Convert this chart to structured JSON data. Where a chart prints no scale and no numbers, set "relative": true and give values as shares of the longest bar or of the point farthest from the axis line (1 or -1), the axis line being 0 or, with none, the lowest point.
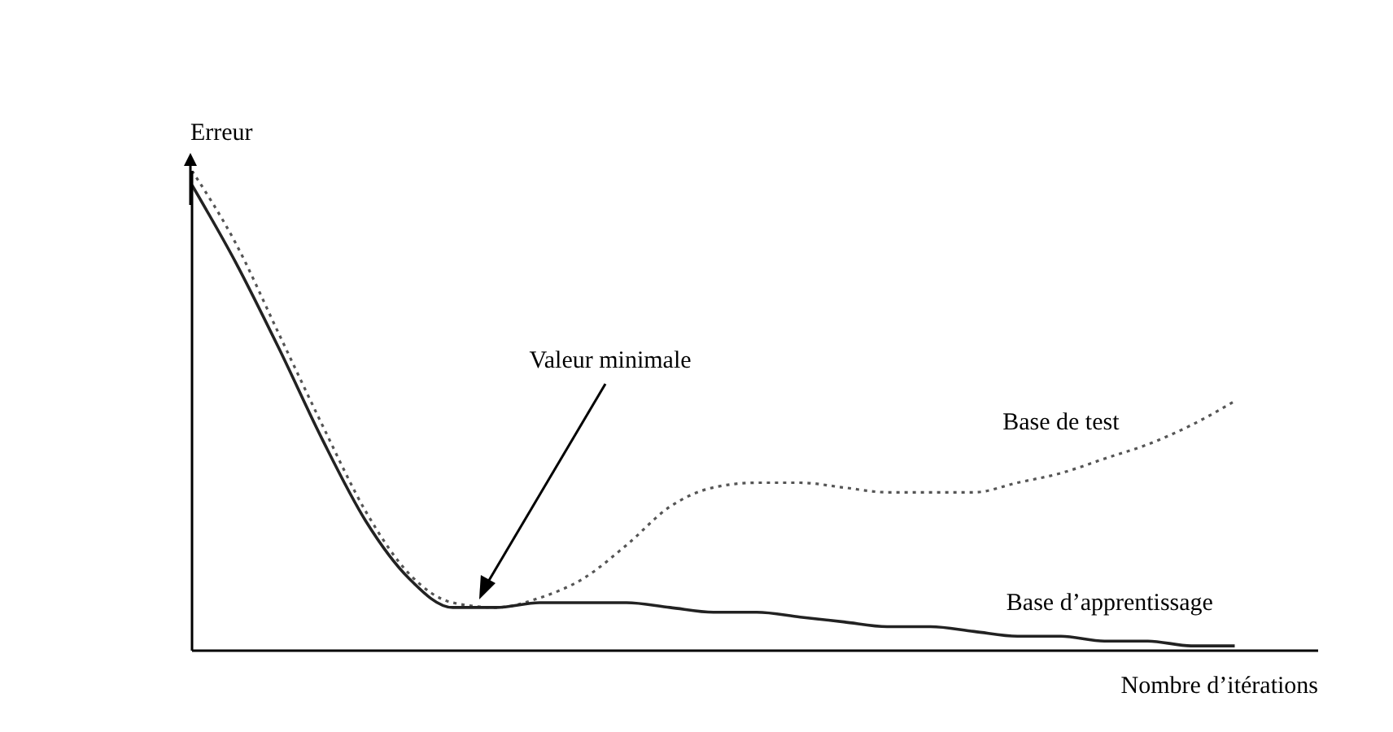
{
  "chart_data": {
    "type": "line",
    "relative": true,
    "ylabel": "Erreur",
    "xlabel": "Nombre d’itérations",
    "marker": "none",
    "categories": [
      null,
      null,
      null,
      null,
      null,
      null,
      null,
      null,
      null,
      null,
      null,
      null,
      null,
      null,
      null,
      null,
      null,
      null,
      null,
      null,
      null,
      null,
      null,
      null,
      null
    ],
    "series": [
      {
        "name": "Base de test",
        "color": "#555555",
        "line_style": "dotted",
        "values": [
          1.0,
          0.85,
          0.66,
          0.47,
          0.29,
          0.16,
          0.1,
          0.09,
          0.11,
          0.15,
          0.22,
          0.3,
          0.34,
          0.35,
          0.35,
          0.34,
          0.33,
          0.33,
          0.33,
          0.35,
          0.37,
          0.4,
          0.43,
          0.47,
          0.52
        ]
      },
      {
        "name": "Base d’apprentissage",
        "color": "#222222",
        "line_style": "solid",
        "values": [
          0.97,
          0.81,
          0.63,
          0.44,
          0.27,
          0.15,
          0.09,
          0.09,
          0.1,
          0.1,
          0.1,
          0.09,
          0.08,
          0.08,
          0.07,
          0.06,
          0.05,
          0.05,
          0.04,
          0.03,
          0.03,
          0.02,
          0.02,
          0.01,
          0.01
        ]
      }
    ],
    "annotations": [
      "Valeur minimale"
    ]
  }
}
